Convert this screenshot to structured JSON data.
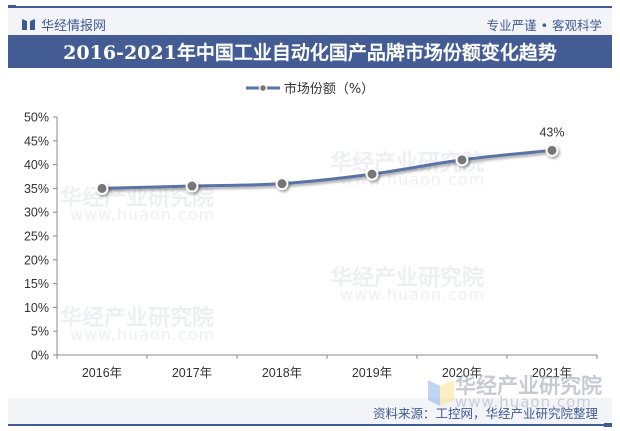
{
  "header": {
    "brand": "华经情报网",
    "slogan": "专业严谨 • 客观科学",
    "brand_icon": "book-icon"
  },
  "title": "2016-2021年中国工业自动化国产品牌市场份额变化趋势",
  "legend": {
    "label": "市场份额（%）"
  },
  "footer": {
    "source": "资料来源：工控网，华经产业研究院整理"
  },
  "watermark": {
    "text": "华经产业研究院",
    "url": "www.huaon.com"
  },
  "colors": {
    "line": "#5a72a6",
    "marker": "#777777",
    "title_bg": "#435c94",
    "brand": "#3e5a94",
    "band_bg": "#f3f4f8"
  },
  "chart_data": {
    "type": "line",
    "title": "2016-2021年中国工业自动化国产品牌市场份额变化趋势",
    "xlabel": "",
    "ylabel": "",
    "categories": [
      "2016年",
      "2017年",
      "2018年",
      "2019年",
      "2020年",
      "2021年"
    ],
    "series": [
      {
        "name": "市场份额（%）",
        "values": [
          35,
          35.5,
          36,
          38,
          41,
          43
        ],
        "data_labels": [
          "",
          "",
          "",
          "",
          "",
          "43%"
        ]
      }
    ],
    "yticks": [
      "0%",
      "5%",
      "10%",
      "15%",
      "20%",
      "25%",
      "30%",
      "35%",
      "40%",
      "45%",
      "50%"
    ],
    "ylim": [
      0,
      50
    ],
    "grid": false,
    "legend_position": "top"
  }
}
